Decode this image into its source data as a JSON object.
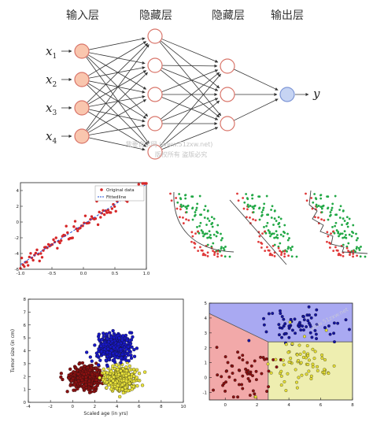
{
  "network": {
    "layer_titles": [
      "输入层",
      "隐藏层",
      "隐藏层",
      "输出层"
    ],
    "input_labels": [
      "x",
      "x",
      "x",
      "x"
    ],
    "input_subscripts": [
      "1",
      "2",
      "3",
      "4"
    ],
    "output_label": "y",
    "layer_sizes": [
      4,
      5,
      3,
      1
    ],
    "colors": {
      "input": "#f9c6ae",
      "hidden": "#ffffff",
      "output": "#c6d4f3",
      "stroke": "#d9756a"
    }
  },
  "watermark": {
    "line1": "我要自学网 (www.51zxw.net)",
    "line2": "版权所有 盗版必究",
    "right": "www.51zxw.net"
  },
  "chart_data": [
    {
      "type": "scatter",
      "legend": [
        "Original data",
        "Fittedline"
      ],
      "legend_position": "top-right",
      "xlim": [
        -1.0,
        1.0
      ],
      "ylim": [
        -6,
        5
      ],
      "xticks": [
        "-1.0",
        "-0.5",
        "0.0",
        "0.5",
        "1.0"
      ],
      "yticks": [
        "-6",
        "-4",
        "-2",
        "0",
        "2",
        "4"
      ],
      "fit_line": {
        "x": [
          -1.0,
          1.0
        ],
        "y": [
          -5.4,
          4.8
        ]
      },
      "point_count": 100,
      "colors": {
        "points": "#d62728",
        "line": "#1f4fd6"
      }
    },
    {
      "type": "scatter",
      "panels": 3,
      "classes": [
        "red",
        "green"
      ],
      "boundaries": [
        "smooth-curve",
        "straight-line",
        "zigzag-overfit"
      ],
      "colors": {
        "red": "#e03a3a",
        "green": "#22a846"
      }
    },
    {
      "type": "scatter",
      "xlabel": "Scaled age (in yrs)",
      "ylabel": "Tumor size (in cm)",
      "xlim": [
        -4,
        10
      ],
      "ylim": [
        0,
        8
      ],
      "xticks": [
        "-4",
        "-2",
        "0",
        "2",
        "4",
        "6",
        "8",
        "10"
      ],
      "yticks": [
        "0",
        "1",
        "2",
        "3",
        "4",
        "5",
        "6",
        "7",
        "8"
      ],
      "clusters": [
        {
          "name": "",
          "color": "#8b1010",
          "center": [
            1.2,
            1.9
          ],
          "spread": [
            1.1,
            0.65
          ],
          "count": 380
        },
        {
          "name": "",
          "color": "#e9e23a",
          "center": [
            4.3,
            1.8
          ],
          "spread": [
            1.0,
            0.65
          ],
          "count": 380
        },
        {
          "name": "",
          "color": "#1818c8",
          "center": [
            3.7,
            4.3
          ],
          "spread": [
            1.0,
            0.75
          ],
          "count": 420
        }
      ]
    },
    {
      "type": "scatter",
      "xlim": [
        -1,
        8
      ],
      "ylim": [
        -1.5,
        5
      ],
      "xticks": [
        "0",
        "2",
        "4",
        "6",
        "8"
      ],
      "yticks": [
        "-1",
        "0",
        "1",
        "2",
        "3",
        "4",
        "5"
      ],
      "regions": [
        "blue",
        "red",
        "yellow"
      ],
      "colors": {
        "blue": "#a9a9f2",
        "red": "#f2a9a9",
        "yellow": "#eeeeb0",
        "blue_pts": "#1414a0",
        "red_pts": "#8b1010",
        "yellow_pts": "#e7e034"
      }
    }
  ]
}
